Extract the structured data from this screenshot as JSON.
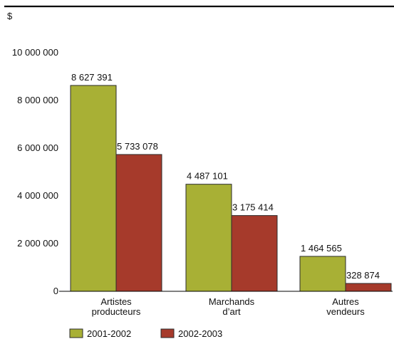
{
  "chart_data": {
    "type": "bar",
    "unit_label": "$",
    "categories": [
      [
        "Artistes",
        "producteurs"
      ],
      [
        "Marchands",
        "d’art"
      ],
      [
        "Autres",
        "vendeurs"
      ]
    ],
    "series": [
      {
        "name": "2001-2002",
        "color": "#a8b035",
        "values": [
          8627391,
          4487101,
          1464565
        ],
        "labels": [
          "8 627 391",
          "4 487 101",
          "1 464 565"
        ]
      },
      {
        "name": "2002-2003",
        "color": "#a63a2b",
        "values": [
          5733078,
          3175414,
          328874
        ],
        "labels": [
          "5 733 078",
          "3 175 414",
          "328 874"
        ]
      }
    ],
    "ylim": [
      0,
      10000000
    ],
    "yticks": [
      {
        "value": 0,
        "label": "0"
      },
      {
        "value": 2000000,
        "label": "2 000 000"
      },
      {
        "value": 4000000,
        "label": "4 000 000"
      },
      {
        "value": 6000000,
        "label": "6 000 000"
      },
      {
        "value": 8000000,
        "label": "8 000 000"
      },
      {
        "value": 10000000,
        "label": "10 000 000"
      }
    ],
    "grid": false,
    "legend_position": "bottom-left"
  }
}
